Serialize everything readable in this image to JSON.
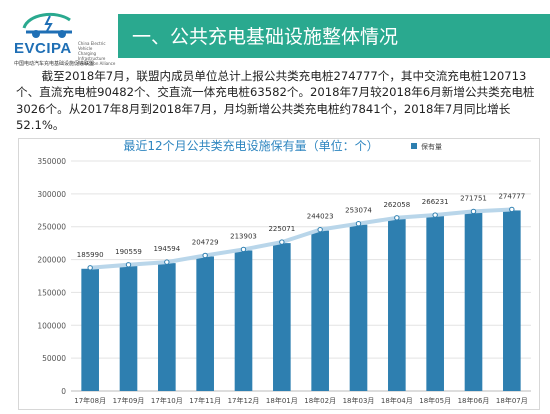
{
  "logo": {
    "name": "EVCIPA",
    "side_text": [
      "China Electric Vehicle",
      "Charging Infrastructure",
      "Promotion Alliance"
    ],
    "subtitle": "中国电动汽车充电基础设施促进联盟",
    "icon": "ev-plug-car-icon"
  },
  "header": {
    "title": "一、公共充电基础设施整体情况"
  },
  "paragraph": "截至2018年7月，联盟内成员单位总计上报公共类充电桩274777个，其中交流充电桩120713个、直流充电桩90482个、交直流一体充电桩63582个。2018年7月较2018年6月新增公共类充电桩3026个。从2017年8月到2018年7月，月均新增公共类充电桩约7841个，2018年7月同比增长52.1%。",
  "colors": {
    "accent": "#2aa98f",
    "bar": "#2e7fb0",
    "line": "#b9d6ea",
    "title": "#2f86c0"
  },
  "chart_data": {
    "type": "bar",
    "title": "最近12个月公共类充电设施保有量（单位：个）",
    "legend": "保有量",
    "legend_position": "top-right",
    "categories": [
      "17年08月",
      "17年09月",
      "17年10月",
      "17年11月",
      "17年12月",
      "18年01月",
      "18年02月",
      "18年03月",
      "18年04月",
      "18年05月",
      "18年06月",
      "18年07月"
    ],
    "series": [
      {
        "name": "保有量",
        "values": [
          185990,
          190559,
          194594,
          204729,
          213903,
          225071,
          244023,
          253074,
          262058,
          266231,
          271751,
          274777
        ]
      }
    ],
    "ylim": [
      0,
      350000
    ],
    "yticks": [
      "0",
      "50000",
      "100000",
      "150000",
      "200000",
      "250000",
      "300000",
      "350000"
    ],
    "grid": true,
    "trend_line": true
  }
}
